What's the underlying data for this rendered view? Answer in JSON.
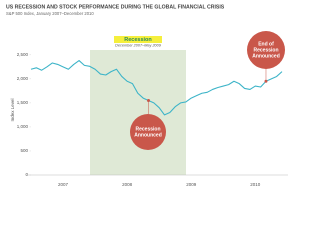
{
  "chart_data": {
    "type": "line",
    "title": "US RECESSION AND STOCK PERFORMANCE DURING THE GLOBAL FINANCIAL CRISIS",
    "subtitle": "S&P 500 Index, January 2007–December 2010",
    "y_label": "Index Level",
    "categories": [
      null,
      null,
      null,
      null,
      null,
      null,
      "2007",
      null,
      null,
      null,
      null,
      null,
      null,
      null,
      null,
      null,
      null,
      null,
      "2008",
      null,
      null,
      null,
      null,
      null,
      null,
      null,
      null,
      null,
      null,
      null,
      "2009",
      null,
      null,
      null,
      null,
      null,
      null,
      null,
      null,
      null,
      null,
      null,
      "2010",
      null,
      null,
      null,
      null,
      null
    ],
    "series": [
      {
        "name": "S&P 500 Index",
        "color": "#3db4c8",
        "values": [
          2200,
          2230,
          2180,
          2250,
          2330,
          2300,
          2250,
          2200,
          2300,
          2380,
          2280,
          2260,
          2200,
          2100,
          2080,
          2150,
          2200,
          2050,
          1950,
          1900,
          1700,
          1600,
          1550,
          1500,
          1400,
          1250,
          1300,
          1420,
          1500,
          1520,
          1600,
          1650,
          1700,
          1720,
          1780,
          1820,
          1850,
          1880,
          1950,
          1900,
          1800,
          1780,
          1850,
          1830,
          1950,
          2000,
          2050,
          2150
        ]
      }
    ],
    "ylim": [
      0,
      2600
    ],
    "yticks": [
      0,
      500,
      {
        "value": 1000,
        "label": "1,000"
      },
      {
        "value": 1500,
        "label": "1,500"
      },
      {
        "value": 2000,
        "label": "2,000"
      },
      {
        "value": 2500,
        "label": "2,500"
      }
    ],
    "recession": {
      "label": "Recession",
      "dates": "December 2007–May 2009"
    },
    "annotations": [
      {
        "lines": [
          "Recession",
          "Announced"
        ]
      },
      {
        "lines": [
          "End of",
          "Recession",
          "Announced"
        ]
      }
    ]
  }
}
